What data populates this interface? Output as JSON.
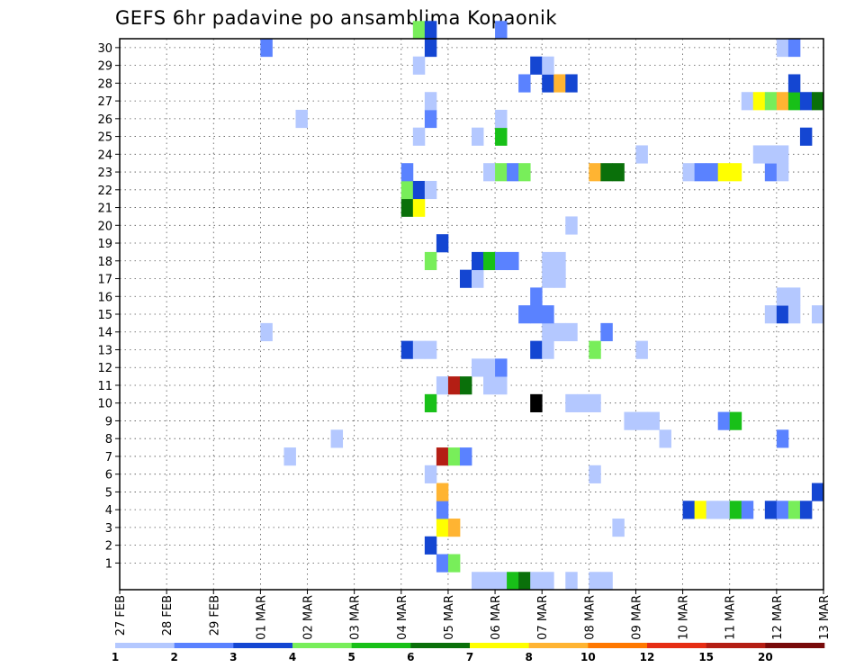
{
  "chart_data": {
    "type": "heatmap",
    "title": "GEFS 6hr padavine po ansamblima Kopaonik",
    "xlabel": "",
    "ylabel": "",
    "x_ticks": [
      "27 FEB",
      "28 FEB",
      "29 FEB",
      "01 MAR",
      "02 MAR",
      "03 MAR",
      "04 MAR",
      "05 MAR",
      "06 MAR",
      "07 MAR",
      "08 MAR",
      "09 MAR",
      "10 MAR",
      "11 MAR",
      "12 MAR",
      "13 MAR"
    ],
    "y_ticks": [
      1,
      2,
      3,
      4,
      5,
      6,
      7,
      8,
      9,
      10,
      11,
      12,
      13,
      14,
      15,
      16,
      17,
      18,
      19,
      20,
      21,
      22,
      23,
      24,
      25,
      26,
      27,
      28,
      29,
      30
    ],
    "x_time_step": "6hr",
    "ylim": [
      0,
      30
    ],
    "grid": true,
    "legend": {
      "placement": "bottom",
      "ticks": [
        "1",
        "2",
        "3",
        "4",
        "5",
        "6",
        "7",
        "8",
        "10",
        "12",
        "15",
        "20"
      ],
      "colors": [
        "#b4c8ff",
        "#5a82ff",
        "#1446d2",
        "#78ee5a",
        "#18c018",
        "#0a700a",
        "#ffff00",
        "#ffb432",
        "#ff7800",
        "#e62d14",
        "#b41e14",
        "#780a0a"
      ]
    },
    "cells": [
      {
        "member": 0,
        "dates": [
          "05 MAR 12",
          "05 MAR 18",
          "06 MAR 00",
          "06 MAR 06",
          "06 MAR 12",
          "06 MAR 18",
          "07 MAR 00",
          "07 MAR 12",
          "08 MAR 00",
          "08 MAR 06"
        ],
        "levels": [
          1,
          1,
          1,
          5,
          6,
          1,
          1,
          1,
          1,
          1
        ]
      },
      {
        "member": 1,
        "dates": [
          "04 MAR 18",
          "05 MAR 00"
        ],
        "levels": [
          2,
          4
        ]
      },
      {
        "member": 2,
        "dates": [
          "04 MAR 12"
        ],
        "levels": [
          3
        ]
      },
      {
        "member": 3,
        "dates": [
          "04 MAR 18",
          "05 MAR 00",
          "08 MAR 12"
        ],
        "levels": [
          7,
          8,
          1
        ]
      },
      {
        "member": 4,
        "dates": [
          "04 MAR 18",
          "10 MAR 00",
          "10 MAR 06",
          "10 MAR 12",
          "10 MAR 18",
          "11 MAR 00",
          "11 MAR 06",
          "11 MAR 18",
          "12 MAR 00",
          "12 MAR 06",
          "12 MAR 12"
        ],
        "levels": [
          2,
          3,
          7,
          1,
          1,
          5,
          2,
          3,
          2,
          4,
          3
        ]
      },
      {
        "member": 5,
        "dates": [
          "04 MAR 18",
          "12 MAR 18"
        ],
        "levels": [
          8,
          3
        ]
      },
      {
        "member": 6,
        "dates": [
          "04 MAR 12",
          "08 MAR 00"
        ],
        "levels": [
          1,
          1
        ]
      },
      {
        "member": 7,
        "dates": [
          "01 MAR 12",
          "04 MAR 18",
          "05 MAR 00",
          "05 MAR 06"
        ],
        "levels": [
          1,
          11,
          4,
          2
        ]
      },
      {
        "member": 8,
        "dates": [
          "02 MAR 12",
          "09 MAR 12",
          "12 MAR 00"
        ],
        "levels": [
          1,
          1,
          2
        ]
      },
      {
        "member": 9,
        "dates": [
          "08 MAR 18",
          "09 MAR 00",
          "09 MAR 06",
          "10 MAR 18",
          "11 MAR 00"
        ],
        "levels": [
          1,
          1,
          1,
          2,
          5
        ]
      },
      {
        "member": 10,
        "dates": [
          "04 MAR 12",
          "06 MAR 18",
          "07 MAR 12",
          "07 MAR 18",
          "08 MAR 00"
        ],
        "levels": [
          5,
          13,
          1,
          1,
          1
        ]
      },
      {
        "member": 11,
        "dates": [
          "04 MAR 18",
          "05 MAR 00",
          "05 MAR 06",
          "05 MAR 18",
          "06 MAR 00"
        ],
        "levels": [
          1,
          11,
          6,
          1,
          1
        ]
      },
      {
        "member": 12,
        "dates": [
          "05 MAR 12",
          "05 MAR 18",
          "06 MAR 00"
        ],
        "levels": [
          1,
          1,
          2
        ]
      },
      {
        "member": 13,
        "dates": [
          "04 MAR 00",
          "04 MAR 06",
          "04 MAR 12",
          "06 MAR 18",
          "07 MAR 00",
          "08 MAR 00",
          "09 MAR 00"
        ],
        "levels": [
          3,
          1,
          1,
          3,
          1,
          4,
          1
        ]
      },
      {
        "member": 14,
        "dates": [
          "01 MAR 00",
          "07 MAR 00",
          "07 MAR 06",
          "07 MAR 12",
          "08 MAR 06"
        ],
        "levels": [
          1,
          1,
          1,
          1,
          2
        ]
      },
      {
        "member": 15,
        "dates": [
          "06 MAR 12",
          "06 MAR 18",
          "07 MAR 00",
          "11 MAR 18",
          "12 MAR 00",
          "12 MAR 06",
          "12 MAR 18"
        ],
        "levels": [
          2,
          2,
          2,
          1,
          3,
          1,
          1
        ]
      },
      {
        "member": 16,
        "dates": [
          "06 MAR 18",
          "12 MAR 00",
          "12 MAR 06"
        ],
        "levels": [
          2,
          1,
          1
        ]
      },
      {
        "member": 17,
        "dates": [
          "05 MAR 06",
          "05 MAR 12",
          "07 MAR 00",
          "07 MAR 06"
        ],
        "levels": [
          3,
          1,
          1,
          1
        ]
      },
      {
        "member": 18,
        "dates": [
          "04 MAR 12",
          "05 MAR 12",
          "05 MAR 18",
          "06 MAR 00",
          "06 MAR 06",
          "07 MAR 00",
          "07 MAR 06"
        ],
        "levels": [
          4,
          3,
          5,
          2,
          2,
          1,
          1
        ]
      },
      {
        "member": 19,
        "dates": [
          "04 MAR 18"
        ],
        "levels": [
          3
        ]
      },
      {
        "member": 20,
        "dates": [
          "07 MAR 12"
        ],
        "levels": [
          1
        ]
      },
      {
        "member": 21,
        "dates": [
          "04 MAR 00",
          "04 MAR 06"
        ],
        "levels": [
          6,
          7
        ]
      },
      {
        "member": 22,
        "dates": [
          "04 MAR 00",
          "04 MAR 06",
          "04 MAR 12"
        ],
        "levels": [
          4,
          3,
          1
        ]
      },
      {
        "member": 23,
        "dates": [
          "04 MAR 00",
          "05 MAR 18",
          "06 MAR 00",
          "06 MAR 06",
          "06 MAR 12",
          "08 MAR 00",
          "08 MAR 06",
          "08 MAR 12",
          "10 MAR 00",
          "10 MAR 06",
          "10 MAR 12",
          "10 MAR 18",
          "11 MAR 00",
          "11 MAR 18",
          "12 MAR 00"
        ],
        "levels": [
          2,
          1,
          4,
          2,
          4,
          8,
          6,
          6,
          1,
          2,
          2,
          7,
          7,
          2,
          1
        ]
      },
      {
        "member": 24,
        "dates": [
          "09 MAR 00",
          "11 MAR 12",
          "11 MAR 18",
          "12 MAR 00"
        ],
        "levels": [
          1,
          1,
          1,
          1
        ]
      },
      {
        "member": 25,
        "dates": [
          "04 MAR 06",
          "05 MAR 12",
          "06 MAR 00",
          "12 MAR 12"
        ],
        "levels": [
          1,
          1,
          5,
          3
        ]
      },
      {
        "member": 26,
        "dates": [
          "01 MAR 18",
          "04 MAR 12",
          "06 MAR 00"
        ],
        "levels": [
          1,
          2,
          1
        ]
      },
      {
        "member": 27,
        "dates": [
          "04 MAR 12",
          "11 MAR 06",
          "11 MAR 12",
          "11 MAR 18",
          "12 MAR 00",
          "12 MAR 06",
          "12 MAR 12",
          "12 MAR 18"
        ],
        "levels": [
          1,
          1,
          7,
          4,
          8,
          5,
          3,
          6
        ]
      },
      {
        "member": 28,
        "dates": [
          "06 MAR 12",
          "07 MAR 00",
          "07 MAR 06",
          "07 MAR 12",
          "12 MAR 06"
        ],
        "levels": [
          2,
          3,
          8,
          3,
          3
        ]
      },
      {
        "member": 29,
        "dates": [
          "04 MAR 06",
          "06 MAR 18",
          "07 MAR 00"
        ],
        "levels": [
          1,
          3,
          1
        ]
      },
      {
        "member": 30,
        "dates": [
          "01 MAR 00",
          "04 MAR 12",
          "12 MAR 00",
          "12 MAR 06"
        ],
        "levels": [
          2,
          3,
          1,
          2
        ]
      },
      {
        "member": 31,
        "dates": [
          "04 MAR 06",
          "04 MAR 12",
          "06 MAR 00"
        ],
        "levels": [
          4,
          3,
          2
        ]
      }
    ]
  }
}
